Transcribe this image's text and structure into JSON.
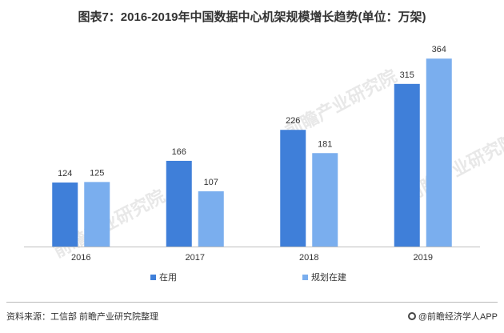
{
  "chart_data": {
    "type": "bar",
    "title": "图表7：2016-2019年中国数据中心机架规模增长趋势(单位：万架)",
    "categories": [
      "2016",
      "2017",
      "2018",
      "2019"
    ],
    "series": [
      {
        "name": "在用",
        "color": "#3f7fd9",
        "values": [
          124,
          166,
          226,
          315
        ]
      },
      {
        "name": "规划在建",
        "color": "#7aaeee",
        "values": [
          125,
          107,
          181,
          364
        ]
      }
    ],
    "ylim": [
      0,
      400
    ],
    "grid": false,
    "legend_position": "bottom"
  },
  "watermark": {
    "text": "前瞻产业研究院"
  },
  "footer": {
    "source": "资料来源：工信部 前瞻产业研究院整理",
    "brand": "@前瞻经济学人APP"
  },
  "colors": {
    "axis": "#bfbfbf",
    "label": "#333333"
  }
}
